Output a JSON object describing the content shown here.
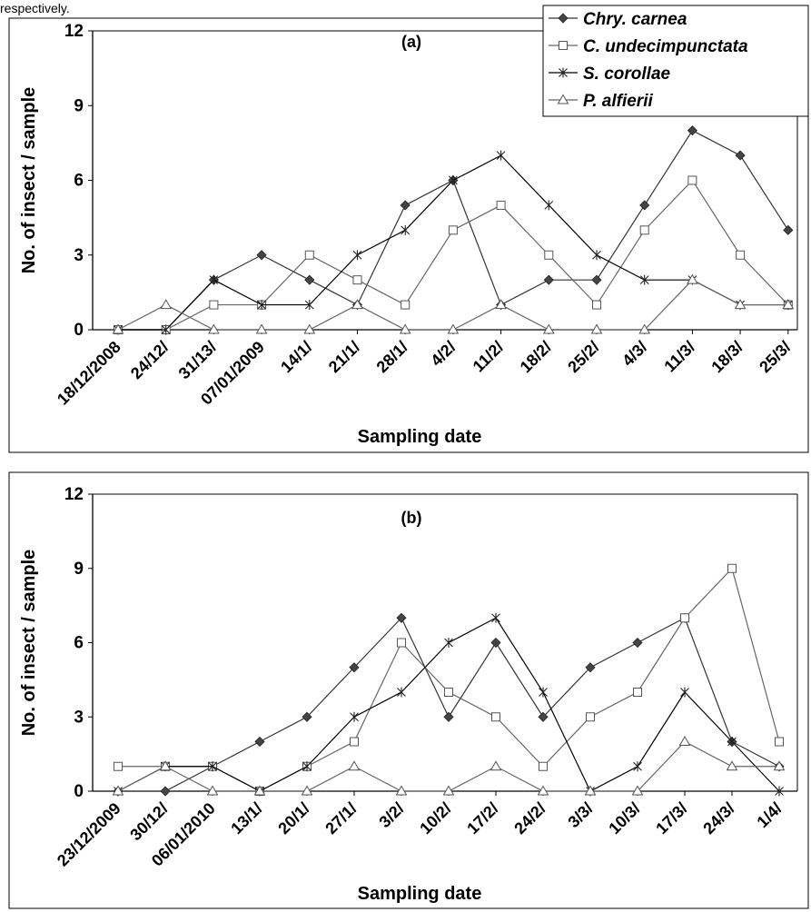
{
  "intro_text": "respectively.",
  "chart_data": [
    {
      "type": "line",
      "annotation": "(a)",
      "xlabel": "Sampling date",
      "ylabel": "No. of insect / sample",
      "ylim": [
        0,
        12
      ],
      "yticks": [
        0,
        3,
        6,
        9,
        12
      ],
      "categories": [
        "18/12/2008",
        "24/12/",
        "31/13/",
        "07/01/2009",
        "14/1/",
        "21/1/",
        "28/1/",
        "4/2/",
        "11/2/",
        "18/2/",
        "25/2/",
        "4/3/",
        "11/3/",
        "18/3/",
        "25/3/"
      ],
      "series": [
        {
          "name": "Chry. carnea",
          "marker": "diamond",
          "values": [
            0,
            0,
            2,
            3,
            2,
            1,
            5,
            6,
            1,
            2,
            2,
            5,
            8,
            7,
            4
          ]
        },
        {
          "name": "C. undecimpunctata",
          "marker": "square",
          "values": [
            0,
            0,
            1,
            1,
            3,
            2,
            1,
            4,
            5,
            3,
            1,
            4,
            6,
            3,
            1
          ]
        },
        {
          "name": "S. corollae",
          "marker": "star",
          "values": [
            0,
            0,
            2,
            1,
            1,
            3,
            4,
            6,
            7,
            5,
            3,
            2,
            2,
            1,
            1
          ]
        },
        {
          "name": "P. alfierii",
          "marker": "triangle",
          "values": [
            0,
            1,
            0,
            0,
            0,
            1,
            0,
            0,
            1,
            0,
            0,
            0,
            2,
            1,
            1
          ]
        }
      ],
      "legend": "top-right"
    },
    {
      "type": "line",
      "annotation": "(b)",
      "xlabel": "Sampling date",
      "ylabel": "No. of insect / sample",
      "ylim": [
        0,
        12
      ],
      "yticks": [
        0,
        3,
        6,
        9,
        12
      ],
      "categories": [
        "23/12/2009",
        "30/12/",
        "06/01/2010",
        "13/1/",
        "20/1/",
        "27/1/",
        "3/2/",
        "10/2/",
        "17/2/",
        "24/2/",
        "3/3/",
        "10/3/",
        "17/3/",
        "24/3/",
        "1/4/"
      ],
      "series": [
        {
          "name": "Chry. carnea",
          "marker": "diamond",
          "values": [
            0,
            0,
            1,
            2,
            3,
            5,
            7,
            3,
            6,
            3,
            5,
            6,
            7,
            2,
            1
          ]
        },
        {
          "name": "C. undecimpunctata",
          "marker": "square",
          "values": [
            1,
            1,
            1,
            0,
            1,
            2,
            6,
            4,
            3,
            1,
            3,
            4,
            7,
            9,
            2
          ]
        },
        {
          "name": "S. corollae",
          "marker": "star",
          "values": [
            0,
            1,
            1,
            0,
            1,
            3,
            4,
            6,
            7,
            4,
            0,
            1,
            4,
            2,
            0
          ]
        },
        {
          "name": "P. alfierii",
          "marker": "triangle",
          "values": [
            0,
            1,
            0,
            0,
            0,
            1,
            0,
            0,
            1,
            0,
            0,
            0,
            2,
            1,
            1
          ]
        }
      ]
    }
  ]
}
